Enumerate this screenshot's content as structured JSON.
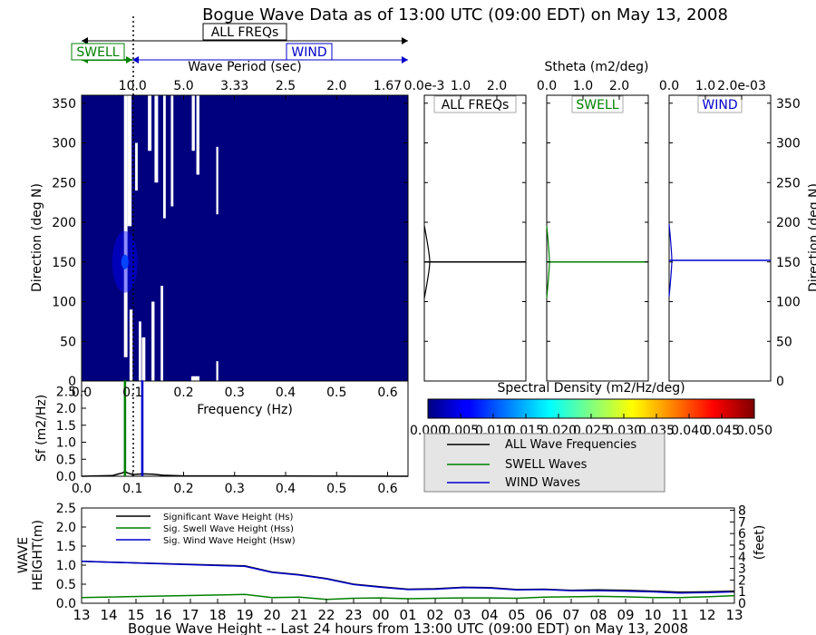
{
  "title": "Bogue Wave Data as of 13:00 UTC (09:00 EDT) on May 13, 2008",
  "colors": {
    "all": "#000000",
    "swell": "#008000",
    "wind": "#0000cc",
    "heat_bg": "#00007f"
  },
  "legend_top": {
    "all_label": "ALL FREQs",
    "swell_label": "SWELL",
    "wind_label": "WIND"
  },
  "chart_data": [
    {
      "id": "spectrum",
      "type": "heatmap",
      "title": "",
      "xlabel": "Frequency (Hz)",
      "ylabel": "Direction (deg N)",
      "x_top_label": "Wave Period (sec)",
      "x_top_ticks": [
        "10.0",
        "5.0",
        "3.33",
        "2.5",
        "2.0",
        "1.67"
      ],
      "x_top_tick_freqs": [
        0.1,
        0.2,
        0.3,
        0.4,
        0.5,
        0.6
      ],
      "xlim": [
        0.0,
        0.64
      ],
      "ylim": [
        0,
        360
      ],
      "x_ticks": [
        "0.0",
        "0.1",
        "0.2",
        "0.3",
        "0.4",
        "0.5",
        "0.6"
      ],
      "y_ticks": [
        "0",
        "50",
        "100",
        "150",
        "200",
        "250",
        "300",
        "350"
      ],
      "separation_frequency": 0.1,
      "peak": {
        "frequency": 0.085,
        "direction": 150
      },
      "colorbar": {
        "label": "Spectral Density (m2/Hz/deg)",
        "min": 0.0,
        "max": 0.05,
        "ticks": [
          "0.000",
          "0.005",
          "0.010",
          "0.015",
          "0.020",
          "0.025",
          "0.030",
          "0.035",
          "0.040",
          "0.045",
          "0.050"
        ]
      }
    },
    {
      "id": "stheta",
      "type": "line",
      "title": "Stheta (m2/deg)",
      "ylabel": "Direction (deg N)",
      "ylim": [
        0,
        360
      ],
      "y_ticks": [
        "0",
        "50",
        "100",
        "150",
        "200",
        "250",
        "300",
        "350"
      ],
      "panels": [
        {
          "name": "ALL FREQs",
          "x_ticks": [
            "0.0e-3",
            "1.0",
            "2.0"
          ],
          "peak_direction": 150
        },
        {
          "name": "SWELL",
          "x_ticks": [
            "0.0",
            "1.0",
            "2.0"
          ],
          "peak_direction": 150
        },
        {
          "name": "WIND",
          "x_ticks": [
            "0.0",
            "1.0",
            "2.0e-03"
          ],
          "peak_direction": 152
        }
      ]
    },
    {
      "id": "sf",
      "type": "line",
      "title": "",
      "xlabel": "",
      "ylabel": "Sf (m2/Hz)",
      "xlim": [
        0.0,
        0.64
      ],
      "ylim": [
        0.0,
        2.8
      ],
      "x_ticks": [
        "0.0",
        "0.1",
        "0.2",
        "0.3",
        "0.4",
        "0.5",
        "0.6"
      ],
      "y_ticks": [
        "0.0",
        "0.5",
        "1.0",
        "1.5",
        "2.0",
        "2.5"
      ],
      "series": [
        {
          "name": "ALL Wave Frequencies",
          "x": [
            0.0,
            0.06,
            0.08,
            0.085,
            0.09,
            0.1,
            0.12,
            0.14,
            0.16,
            0.2,
            0.64
          ],
          "y": [
            0.0,
            0.02,
            0.1,
            0.14,
            0.1,
            0.05,
            0.07,
            0.06,
            0.03,
            0.01,
            0.0
          ]
        },
        {
          "name": "SWELL Waves",
          "x": [
            0.084,
            0.084,
            0.086,
            0.086
          ],
          "y": [
            0.0,
            2.8,
            2.8,
            0.0
          ]
        },
        {
          "name": "WIND Waves",
          "x": [
            0.118,
            0.118,
            0.12,
            0.12
          ],
          "y": [
            0.0,
            2.8,
            2.8,
            0.0
          ]
        }
      ],
      "legend": [
        "ALL Wave Frequencies",
        "SWELL Waves",
        "WIND Waves"
      ]
    },
    {
      "id": "heights",
      "type": "line",
      "title": "",
      "xlabel": "Bogue Wave Height -- Last 24 hours from 13:00 UTC (09:00 EDT) on May 13, 2008",
      "ylabel": "WAVE HEIGHT(m)",
      "y2label": "(feet)",
      "categories": [
        "13",
        "14",
        "15",
        "16",
        "17",
        "18",
        "19",
        "20",
        "21",
        "22",
        "23",
        "00",
        "01",
        "02",
        "03",
        "04",
        "05",
        "06",
        "07",
        "08",
        "09",
        "10",
        "11",
        "12",
        "13"
      ],
      "ylim": [
        0.0,
        2.5
      ],
      "y_ticks": [
        "0.0",
        "0.5",
        "1.0",
        "1.5",
        "2.0",
        "2.5"
      ],
      "y2lim": [
        0,
        8.2
      ],
      "y2_ticks": [
        "0",
        "1",
        "2",
        "3",
        "4",
        "5",
        "6",
        "7",
        "8"
      ],
      "series": [
        {
          "name": "Significant Wave Height (Hs)",
          "x": [
            0,
            6,
            7,
            8,
            9,
            10,
            11,
            12,
            13,
            14,
            15,
            16,
            17,
            18,
            19,
            20,
            21,
            22,
            23,
            24
          ],
          "values": [
            1.1,
            0.98,
            0.82,
            0.75,
            0.65,
            0.5,
            0.43,
            0.37,
            0.38,
            0.42,
            0.41,
            0.36,
            0.37,
            0.34,
            0.35,
            0.34,
            0.32,
            0.29,
            0.3,
            0.32
          ]
        },
        {
          "name": "Sig. Swell Wave Height (Hss)",
          "x": [
            0,
            6,
            7,
            8,
            9,
            10,
            11,
            12,
            13,
            14,
            15,
            16,
            17,
            18,
            19,
            20,
            21,
            22,
            23,
            24
          ],
          "values": [
            0.15,
            0.23,
            0.15,
            0.16,
            0.1,
            0.13,
            0.14,
            0.12,
            0.13,
            0.14,
            0.14,
            0.13,
            0.16,
            0.17,
            0.18,
            0.17,
            0.15,
            0.15,
            0.17,
            0.2
          ]
        },
        {
          "name": "Sig. Wind Wave Height (Hsw)",
          "x": [
            0,
            6,
            7,
            8,
            9,
            10,
            11,
            12,
            13,
            14,
            15,
            16,
            17,
            18,
            19,
            20,
            21,
            22,
            23,
            24
          ],
          "values": [
            1.1,
            0.97,
            0.81,
            0.74,
            0.64,
            0.49,
            0.42,
            0.36,
            0.37,
            0.41,
            0.4,
            0.35,
            0.36,
            0.33,
            0.33,
            0.32,
            0.3,
            0.27,
            0.28,
            0.3
          ]
        }
      ]
    }
  ]
}
